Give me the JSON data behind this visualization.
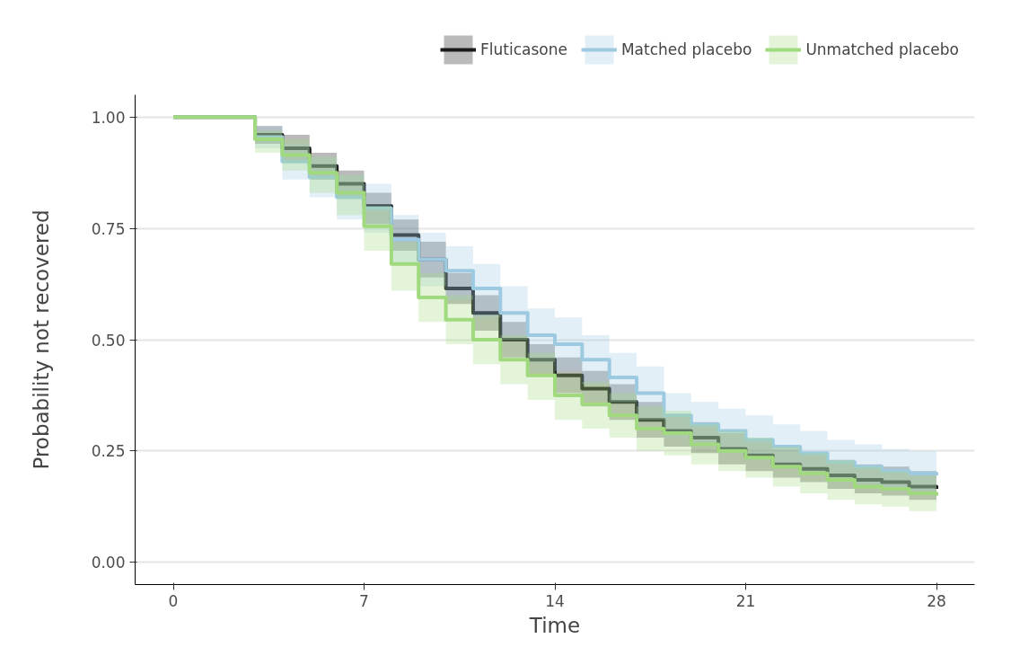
{
  "chart_data": {
    "type": "step",
    "xlabel": "Time",
    "ylabel": "Probability not recovered",
    "x": [
      0,
      3,
      4,
      5,
      6,
      7,
      8,
      9,
      10,
      11,
      12,
      13,
      14,
      15,
      16,
      17,
      18,
      19,
      20,
      21,
      22,
      23,
      24,
      25,
      26,
      27,
      28
    ],
    "series": [
      {
        "name": "Fluticasone",
        "color": "#1a1a1a",
        "values": [
          1,
          0.96,
          0.93,
          0.89,
          0.85,
          0.8,
          0.735,
          0.68,
          0.615,
          0.56,
          0.5,
          0.455,
          0.42,
          0.39,
          0.36,
          0.32,
          0.295,
          0.28,
          0.255,
          0.24,
          0.22,
          0.21,
          0.195,
          0.185,
          0.18,
          0.17,
          0.165
        ],
        "lower": [
          1,
          0.94,
          0.9,
          0.86,
          0.82,
          0.76,
          0.7,
          0.64,
          0.58,
          0.52,
          0.46,
          0.42,
          0.38,
          0.35,
          0.32,
          0.28,
          0.26,
          0.245,
          0.22,
          0.205,
          0.19,
          0.18,
          0.165,
          0.155,
          0.15,
          0.14,
          0.135
        ],
        "upper": [
          1,
          0.98,
          0.96,
          0.92,
          0.88,
          0.83,
          0.77,
          0.72,
          0.65,
          0.6,
          0.54,
          0.49,
          0.46,
          0.43,
          0.4,
          0.36,
          0.33,
          0.315,
          0.29,
          0.275,
          0.255,
          0.245,
          0.23,
          0.22,
          0.215,
          0.205,
          0.2
        ]
      },
      {
        "name": "Matched placebo",
        "color": "#9ecae1",
        "values": [
          1,
          0.955,
          0.9,
          0.865,
          0.82,
          0.795,
          0.725,
          0.68,
          0.655,
          0.615,
          0.56,
          0.51,
          0.49,
          0.455,
          0.415,
          0.38,
          0.33,
          0.31,
          0.295,
          0.275,
          0.26,
          0.245,
          0.225,
          0.215,
          0.205,
          0.2,
          0.195
        ],
        "lower": [
          1,
          0.93,
          0.86,
          0.82,
          0.77,
          0.74,
          0.67,
          0.62,
          0.59,
          0.55,
          0.5,
          0.45,
          0.43,
          0.4,
          0.36,
          0.32,
          0.28,
          0.26,
          0.245,
          0.23,
          0.21,
          0.2,
          0.18,
          0.17,
          0.16,
          0.155,
          0.15
        ],
        "upper": [
          1,
          0.98,
          0.94,
          0.91,
          0.87,
          0.85,
          0.78,
          0.74,
          0.71,
          0.67,
          0.62,
          0.57,
          0.55,
          0.51,
          0.47,
          0.44,
          0.38,
          0.36,
          0.345,
          0.33,
          0.31,
          0.295,
          0.275,
          0.265,
          0.255,
          0.25,
          0.245
        ]
      },
      {
        "name": "Unmatched placebo",
        "color": "#a1d97f",
        "values": [
          1,
          0.95,
          0.915,
          0.875,
          0.83,
          0.755,
          0.67,
          0.595,
          0.545,
          0.5,
          0.455,
          0.42,
          0.375,
          0.355,
          0.33,
          0.3,
          0.29,
          0.265,
          0.25,
          0.235,
          0.215,
          0.2,
          0.185,
          0.17,
          0.165,
          0.155,
          0.15
        ],
        "lower": [
          1,
          0.92,
          0.88,
          0.83,
          0.78,
          0.7,
          0.61,
          0.54,
          0.49,
          0.445,
          0.4,
          0.365,
          0.32,
          0.3,
          0.28,
          0.25,
          0.24,
          0.22,
          0.205,
          0.19,
          0.17,
          0.155,
          0.14,
          0.13,
          0.125,
          0.115,
          0.11
        ],
        "upper": [
          1,
          0.97,
          0.95,
          0.91,
          0.87,
          0.8,
          0.72,
          0.65,
          0.6,
          0.555,
          0.51,
          0.47,
          0.425,
          0.405,
          0.38,
          0.35,
          0.34,
          0.31,
          0.295,
          0.28,
          0.26,
          0.245,
          0.23,
          0.215,
          0.205,
          0.195,
          0.19
        ]
      }
    ],
    "xlim": [
      -1.4,
      29.4
    ],
    "xticks": [
      0,
      7,
      14,
      21,
      28
    ],
    "ylim": [
      -0.05,
      1.05
    ],
    "yticks": [
      {
        "value": 0,
        "label": "0.00"
      },
      {
        "value": 0.25,
        "label": "0.25"
      },
      {
        "value": 0.5,
        "label": "0.50"
      },
      {
        "value": 0.75,
        "label": "0.75"
      },
      {
        "value": 1,
        "label": "1.00"
      }
    ],
    "grid": "y",
    "legend": "top",
    "line_style": "solid"
  }
}
